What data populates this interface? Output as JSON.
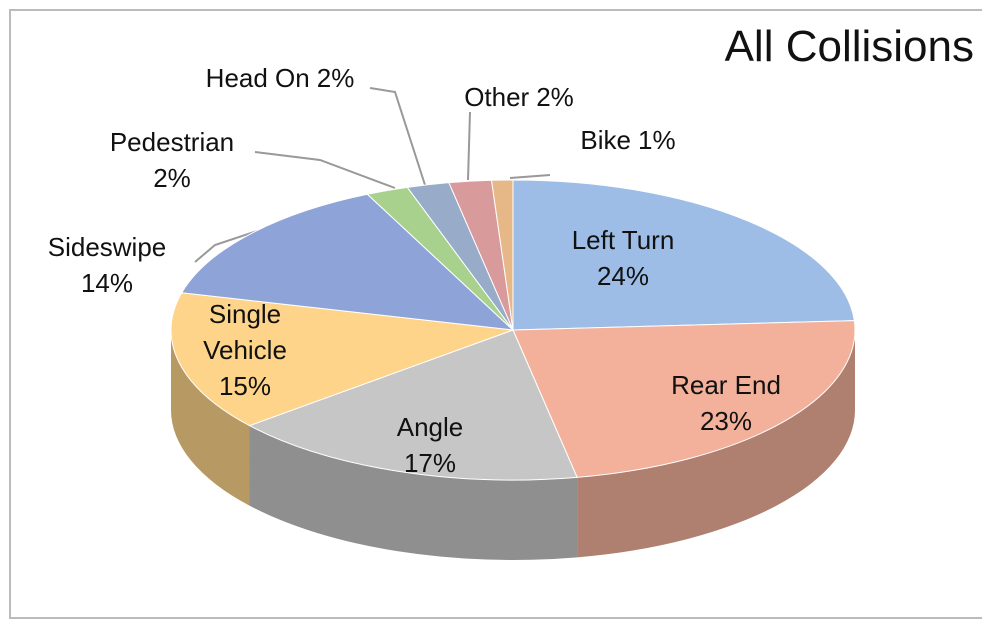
{
  "chart_data": {
    "type": "pie",
    "title": "All Collisions",
    "categories": [
      "Left Turn",
      "Rear End",
      "Angle",
      "Single Vehicle",
      "Sideswipe",
      "Pedestrian",
      "Head On",
      "Other",
      "Bike"
    ],
    "values": [
      24,
      23,
      17,
      15,
      14,
      2,
      2,
      2,
      1
    ],
    "value_labels": [
      "24%",
      "23%",
      "17%",
      "15%",
      "14%",
      "2%",
      "2%",
      "2%",
      "1%"
    ],
    "colors": [
      "#9dbde6",
      "#f3b09a",
      "#c6c6c6",
      "#fdd48a",
      "#8ea3d8",
      "#a7d18c",
      "#98abc8",
      "#d89a9a",
      "#e6b888"
    ]
  }
}
